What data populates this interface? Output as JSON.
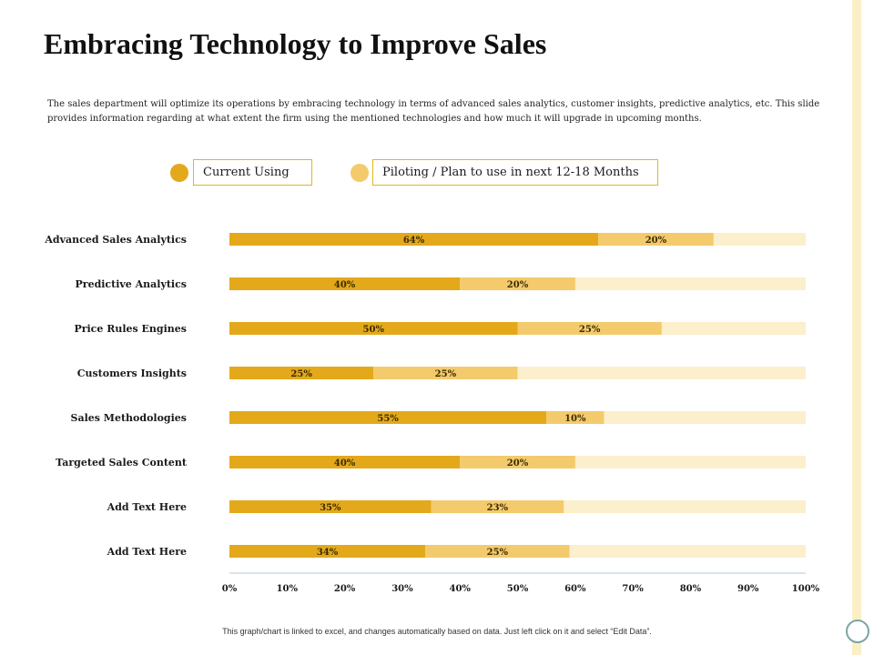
{
  "title": "Embracing Technology to Improve Sales",
  "description": "The sales department will optimize its operations by embracing technology in terms of advanced sales analytics, customer insights, predictive analytics, etc. This slide provides information regarding at what extent the firm using the mentioned technologies and how much it will upgrade in upcoming months.",
  "legend": {
    "current_label": "Current Using",
    "piloting_label": "Piloting / Plan to use in next 12-18 Months"
  },
  "colors": {
    "current": "#e3a91b",
    "piloting": "#f3cb6c",
    "remainder": "#fcefcb",
    "axis": "#b9c9d6"
  },
  "chart_data": {
    "type": "bar",
    "orientation": "horizontal",
    "stacked": true,
    "categories": [
      "Advanced Sales Analytics",
      "Predictive Analytics",
      "Price Rules Engines",
      "Customers Insights",
      "Sales Methodologies",
      "Targeted Sales Content",
      "Add Text Here",
      "Add Text Here"
    ],
    "series": [
      {
        "name": "Current Using",
        "values": [
          64,
          40,
          50,
          25,
          55,
          40,
          35,
          34
        ]
      },
      {
        "name": "Piloting / Plan to use in next 12-18 Months",
        "values": [
          20,
          20,
          25,
          25,
          10,
          20,
          23,
          25
        ]
      }
    ],
    "xlim": [
      0,
      100
    ],
    "x_ticks": [
      "0%",
      "10%",
      "20%",
      "30%",
      "40%",
      "50%",
      "60%",
      "70%",
      "80%",
      "90%",
      "100%"
    ],
    "value_suffix": "%"
  },
  "footnote": "This graph/chart is linked to excel, and changes automatically based on data. Just left click on it and select “Edit Data”."
}
